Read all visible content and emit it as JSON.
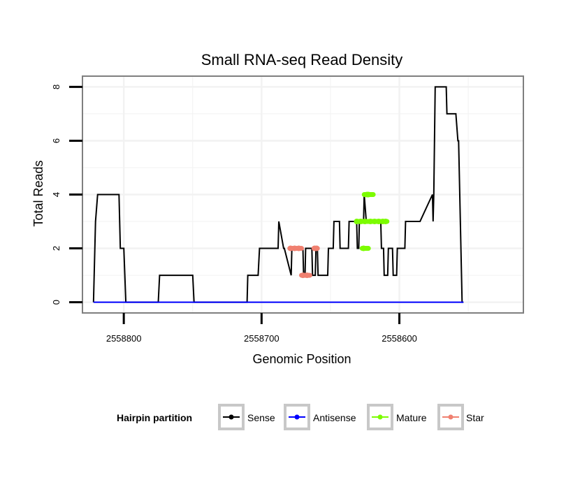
{
  "chart_data": {
    "type": "line",
    "title": "Small RNA-seq Read Density",
    "xlabel": "Genomic Position",
    "ylabel": "Total Reads",
    "xlim": [
      2558830,
      2558510
    ],
    "x_reversed": true,
    "ylim": [
      -0.4,
      8.4
    ],
    "x_ticks": [
      2558800,
      2558700,
      2558600
    ],
    "x_tick_labels": [
      "2558800",
      "2558700",
      "2558600"
    ],
    "y_ticks": [
      0,
      2,
      4,
      6,
      8
    ],
    "y_tick_labels": [
      "0",
      "2",
      "4",
      "6",
      "8"
    ],
    "grid": true,
    "colors": {
      "Sense": "#000000",
      "Antisense": "#0000ff",
      "Mature": "#7cfc00",
      "Star": "#f08070",
      "panel_border": "#7f7f7f",
      "grid": "#f2f2f2"
    },
    "series": [
      {
        "name": "Sense",
        "color": "#000000",
        "x": [
          2558822,
          2558820.5,
          2558819,
          2558803.5,
          2558802.5,
          2558800,
          2558798.5,
          2558775,
          2558774,
          2558750,
          2558749,
          2558710.5,
          2558710,
          2558702.5,
          2558701.5,
          2558688,
          2558687.5,
          2558684,
          2558683.5,
          2558678.5,
          2558678,
          2558670,
          2558669.5,
          2558668.5,
          2558668,
          2558663.5,
          2558663,
          2558661,
          2558660.5,
          2558659.5,
          2558659,
          2558652,
          2558651.5,
          2558648,
          2558647.5,
          2558643.5,
          2558643,
          2558637,
          2558636.5,
          2558631,
          2558630.5,
          2558629.5,
          2558629,
          2558626,
          2558625.5,
          2558624,
          2558623.5,
          2558613.5,
          2558613,
          2558611.5,
          2558611,
          2558608.5,
          2558608,
          2558605,
          2558604.5,
          2558602,
          2558601.5,
          2558596,
          2558595.5,
          2558585.5,
          2558585,
          2558576,
          2558575.5,
          2558575,
          2558574,
          2558573,
          2558572.5,
          2558566,
          2558565.5,
          2558559.5,
          2558559,
          2558557.5,
          2558557,
          2558554.5,
          2558554,
          2558553.5
        ],
        "y": [
          0,
          3,
          4,
          4,
          2,
          2,
          0,
          0,
          1,
          1,
          0,
          0,
          1,
          1,
          2,
          2,
          3,
          2,
          2,
          1,
          2,
          2,
          1,
          1,
          2,
          2,
          1,
          1,
          2,
          2,
          1,
          1,
          2,
          2,
          3,
          3,
          2,
          2,
          3,
          3,
          2,
          2,
          3,
          3,
          4,
          3,
          3,
          3,
          2,
          2,
          1,
          1,
          2,
          2,
          1,
          1,
          2,
          2,
          3,
          3,
          3,
          4,
          3,
          4,
          8,
          8,
          8,
          8,
          7,
          7,
          7,
          6,
          6,
          0,
          0,
          0
        ]
      },
      {
        "name": "Antisense",
        "color": "#0000ff",
        "x": [
          2558822,
          2558553.5
        ],
        "y": [
          0,
          0
        ]
      },
      {
        "name": "Mature",
        "color": "#7cfc00",
        "points": [
          [
            2558631,
            3
          ],
          [
            2558628,
            3
          ],
          [
            2558626,
            2
          ],
          [
            2558625,
            3
          ],
          [
            2558623.5,
            4
          ],
          [
            2558622.5,
            4
          ],
          [
            2558621,
            3
          ],
          [
            2558618,
            3
          ],
          [
            2558615,
            3
          ],
          [
            2558612,
            3
          ],
          [
            2558610,
            3
          ]
        ],
        "segments": [
          [
            2558631,
            2558609,
            3
          ],
          [
            2558622.5,
            2558627,
            2
          ],
          [
            2558619,
            2558625.5,
            4
          ]
        ]
      },
      {
        "name": "Star",
        "color": "#f08070",
        "points": [
          [
            2558679,
            2
          ],
          [
            2558676,
            2
          ],
          [
            2558673,
            2
          ],
          [
            2558670,
            1
          ],
          [
            2558667,
            1
          ],
          [
            2558661.5,
            2
          ],
          [
            2558660,
            2
          ]
        ],
        "segments": [
          [
            2558679.5,
            2558671,
            2
          ],
          [
            2558671,
            2558665,
            1
          ],
          [
            2558662,
            2558659.5,
            2
          ]
        ]
      }
    ],
    "legend": {
      "title": "Hairpin partition",
      "position": "bottom",
      "entries": [
        {
          "label": "Sense",
          "color": "#000000"
        },
        {
          "label": "Antisense",
          "color": "#0000ff"
        },
        {
          "label": "Mature",
          "color": "#7cfc00"
        },
        {
          "label": "Star",
          "color": "#f08070"
        }
      ]
    }
  }
}
